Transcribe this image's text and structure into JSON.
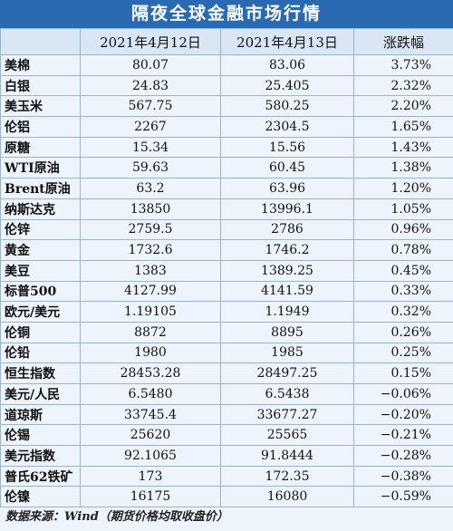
{
  "header": {
    "title": "隔夜全球金融市场行情"
  },
  "table": {
    "columns": [
      "",
      "2021年4月12日",
      "2021年4月13日",
      "涨跌幅"
    ],
    "rows": [
      [
        "美棉",
        "80.07",
        "83.06",
        "3.73%"
      ],
      [
        "白银",
        "24.83",
        "25.405",
        "2.32%"
      ],
      [
        "美玉米",
        "567.75",
        "580.25",
        "2.20%"
      ],
      [
        "伦铝",
        "2267",
        "2304.5",
        "1.65%"
      ],
      [
        "原糖",
        "15.34",
        "15.56",
        "1.43%"
      ],
      [
        "WTI原油",
        "59.63",
        "60.45",
        "1.38%"
      ],
      [
        "Brent原油",
        "63.2",
        "63.96",
        "1.20%"
      ],
      [
        "纳斯达克",
        "13850",
        "13996.1",
        "1.05%"
      ],
      [
        "伦锌",
        "2759.5",
        "2786",
        "0.96%"
      ],
      [
        "黄金",
        "1732.6",
        "1746.2",
        "0.78%"
      ],
      [
        "美豆",
        "1383",
        "1389.25",
        "0.45%"
      ],
      [
        "标普500",
        "4127.99",
        "4141.59",
        "0.33%"
      ],
      [
        "欧元/美元",
        "1.19105",
        "1.1949",
        "0.32%"
      ],
      [
        "伦铜",
        "8872",
        "8895",
        "0.26%"
      ],
      [
        "伦铅",
        "1980",
        "1985",
        "0.25%"
      ],
      [
        "恒生指数",
        "28453.28",
        "28497.25",
        "0.15%"
      ],
      [
        "美元/人民",
        "6.5480",
        "6.5438",
        "−0.06%"
      ],
      [
        "道琼斯",
        "33745.4",
        "33677.27",
        "−0.20%"
      ],
      [
        "伦锡",
        "25620",
        "25565",
        "−0.21%"
      ],
      [
        "美元指数",
        "92.1065",
        "91.8444",
        "−0.28%"
      ],
      [
        "普氏62铁矿",
        "173",
        "172.35",
        "−0.38%"
      ],
      [
        "伦镍",
        "16175",
        "16080",
        "−0.59%"
      ]
    ]
  },
  "footer": {
    "note": "数据来源：Wind（期货价格均取收盘价）"
  }
}
